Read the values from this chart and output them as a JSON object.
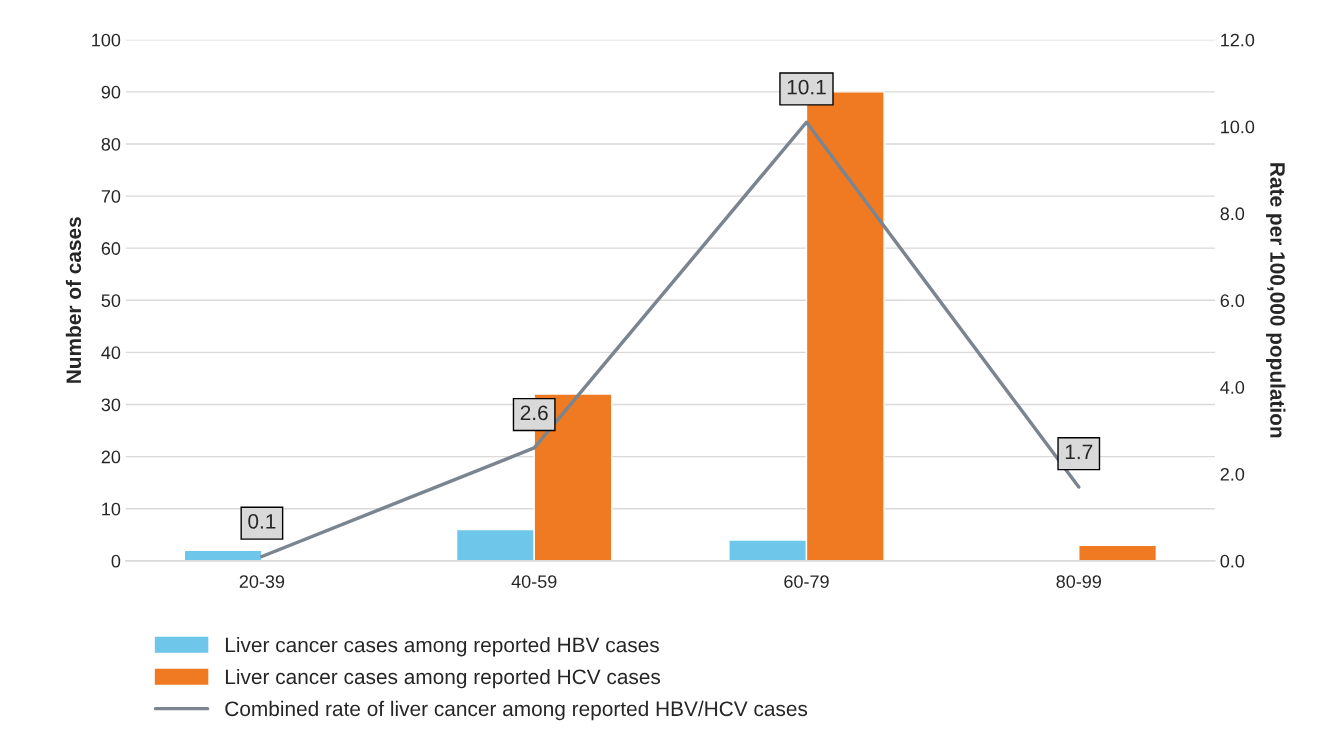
{
  "chart_data": {
    "type": "bar",
    "categories": [
      "20-39",
      "40-59",
      "60-79",
      "80-99"
    ],
    "ylabel": "Number of cases",
    "y2label": "Rate per 100,000 population",
    "ylim": [
      0,
      100
    ],
    "yticks": [
      0,
      10,
      20,
      30,
      40,
      50,
      60,
      70,
      80,
      90,
      100
    ],
    "y2lim": [
      0,
      12
    ],
    "y2ticks": [
      {
        "value": 0,
        "label": "0.0"
      },
      {
        "value": 2,
        "label": "2.0"
      },
      {
        "value": 4,
        "label": "4.0"
      },
      {
        "value": 6,
        "label": "6.0"
      },
      {
        "value": 8,
        "label": "8.0"
      },
      {
        "value": 10,
        "label": "10.0"
      },
      {
        "value": 12,
        "label": "12.0"
      }
    ],
    "grid": "y",
    "legend": "bottom",
    "series": [
      {
        "name": "Liver cancer cases among reported HBV cases",
        "color": "#6ec6ea",
        "values": [
          2,
          6,
          4,
          null
        ]
      },
      {
        "name": "Liver cancer cases among reported HCV cases",
        "color": "#f07a22",
        "values": [
          null,
          32,
          90,
          3
        ]
      },
      {
        "name": "Combined rate of liver cancer among reported HBV/HCV cases",
        "type": "line",
        "axis": "y2",
        "color": "#7b8590",
        "values": [
          0.1,
          2.6,
          10.1,
          1.7
        ],
        "data_labels": true
      }
    ]
  }
}
